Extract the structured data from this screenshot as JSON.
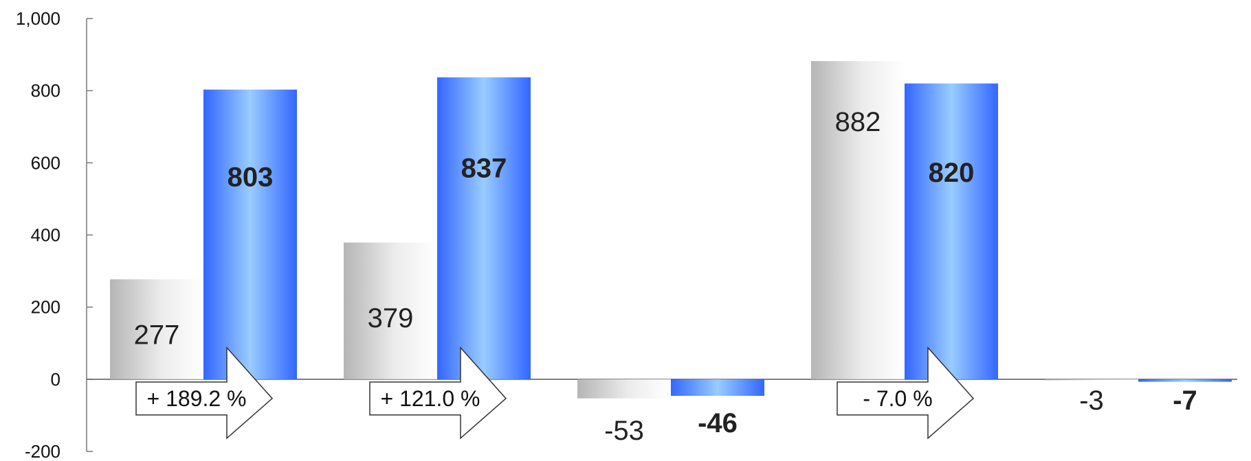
{
  "chart_data": {
    "type": "bar",
    "categories": [
      "",
      "",
      "",
      "",
      ""
    ],
    "series": [
      {
        "values": [
          277,
          379,
          -53,
          882,
          -3
        ],
        "color_stops": [
          "#b5b5b5",
          "#ffffff"
        ]
      },
      {
        "values": [
          803,
          837,
          -46,
          820,
          -7
        ],
        "color_stops": [
          "#3366ff",
          "#99ccff"
        ]
      }
    ],
    "changes": [
      "+ 189.2 %",
      "+ 121.0 %",
      "",
      "- 7.0 %",
      ""
    ],
    "ylim": [
      -200,
      1000
    ],
    "yticks": [
      -200,
      0,
      200,
      400,
      600,
      800,
      1000
    ],
    "ytick_labels": [
      "-200",
      "0",
      "200",
      "400",
      "600",
      "800",
      "1,000"
    ],
    "title": "",
    "xlabel": "",
    "ylabel": "",
    "grid": false,
    "legend": "none"
  }
}
